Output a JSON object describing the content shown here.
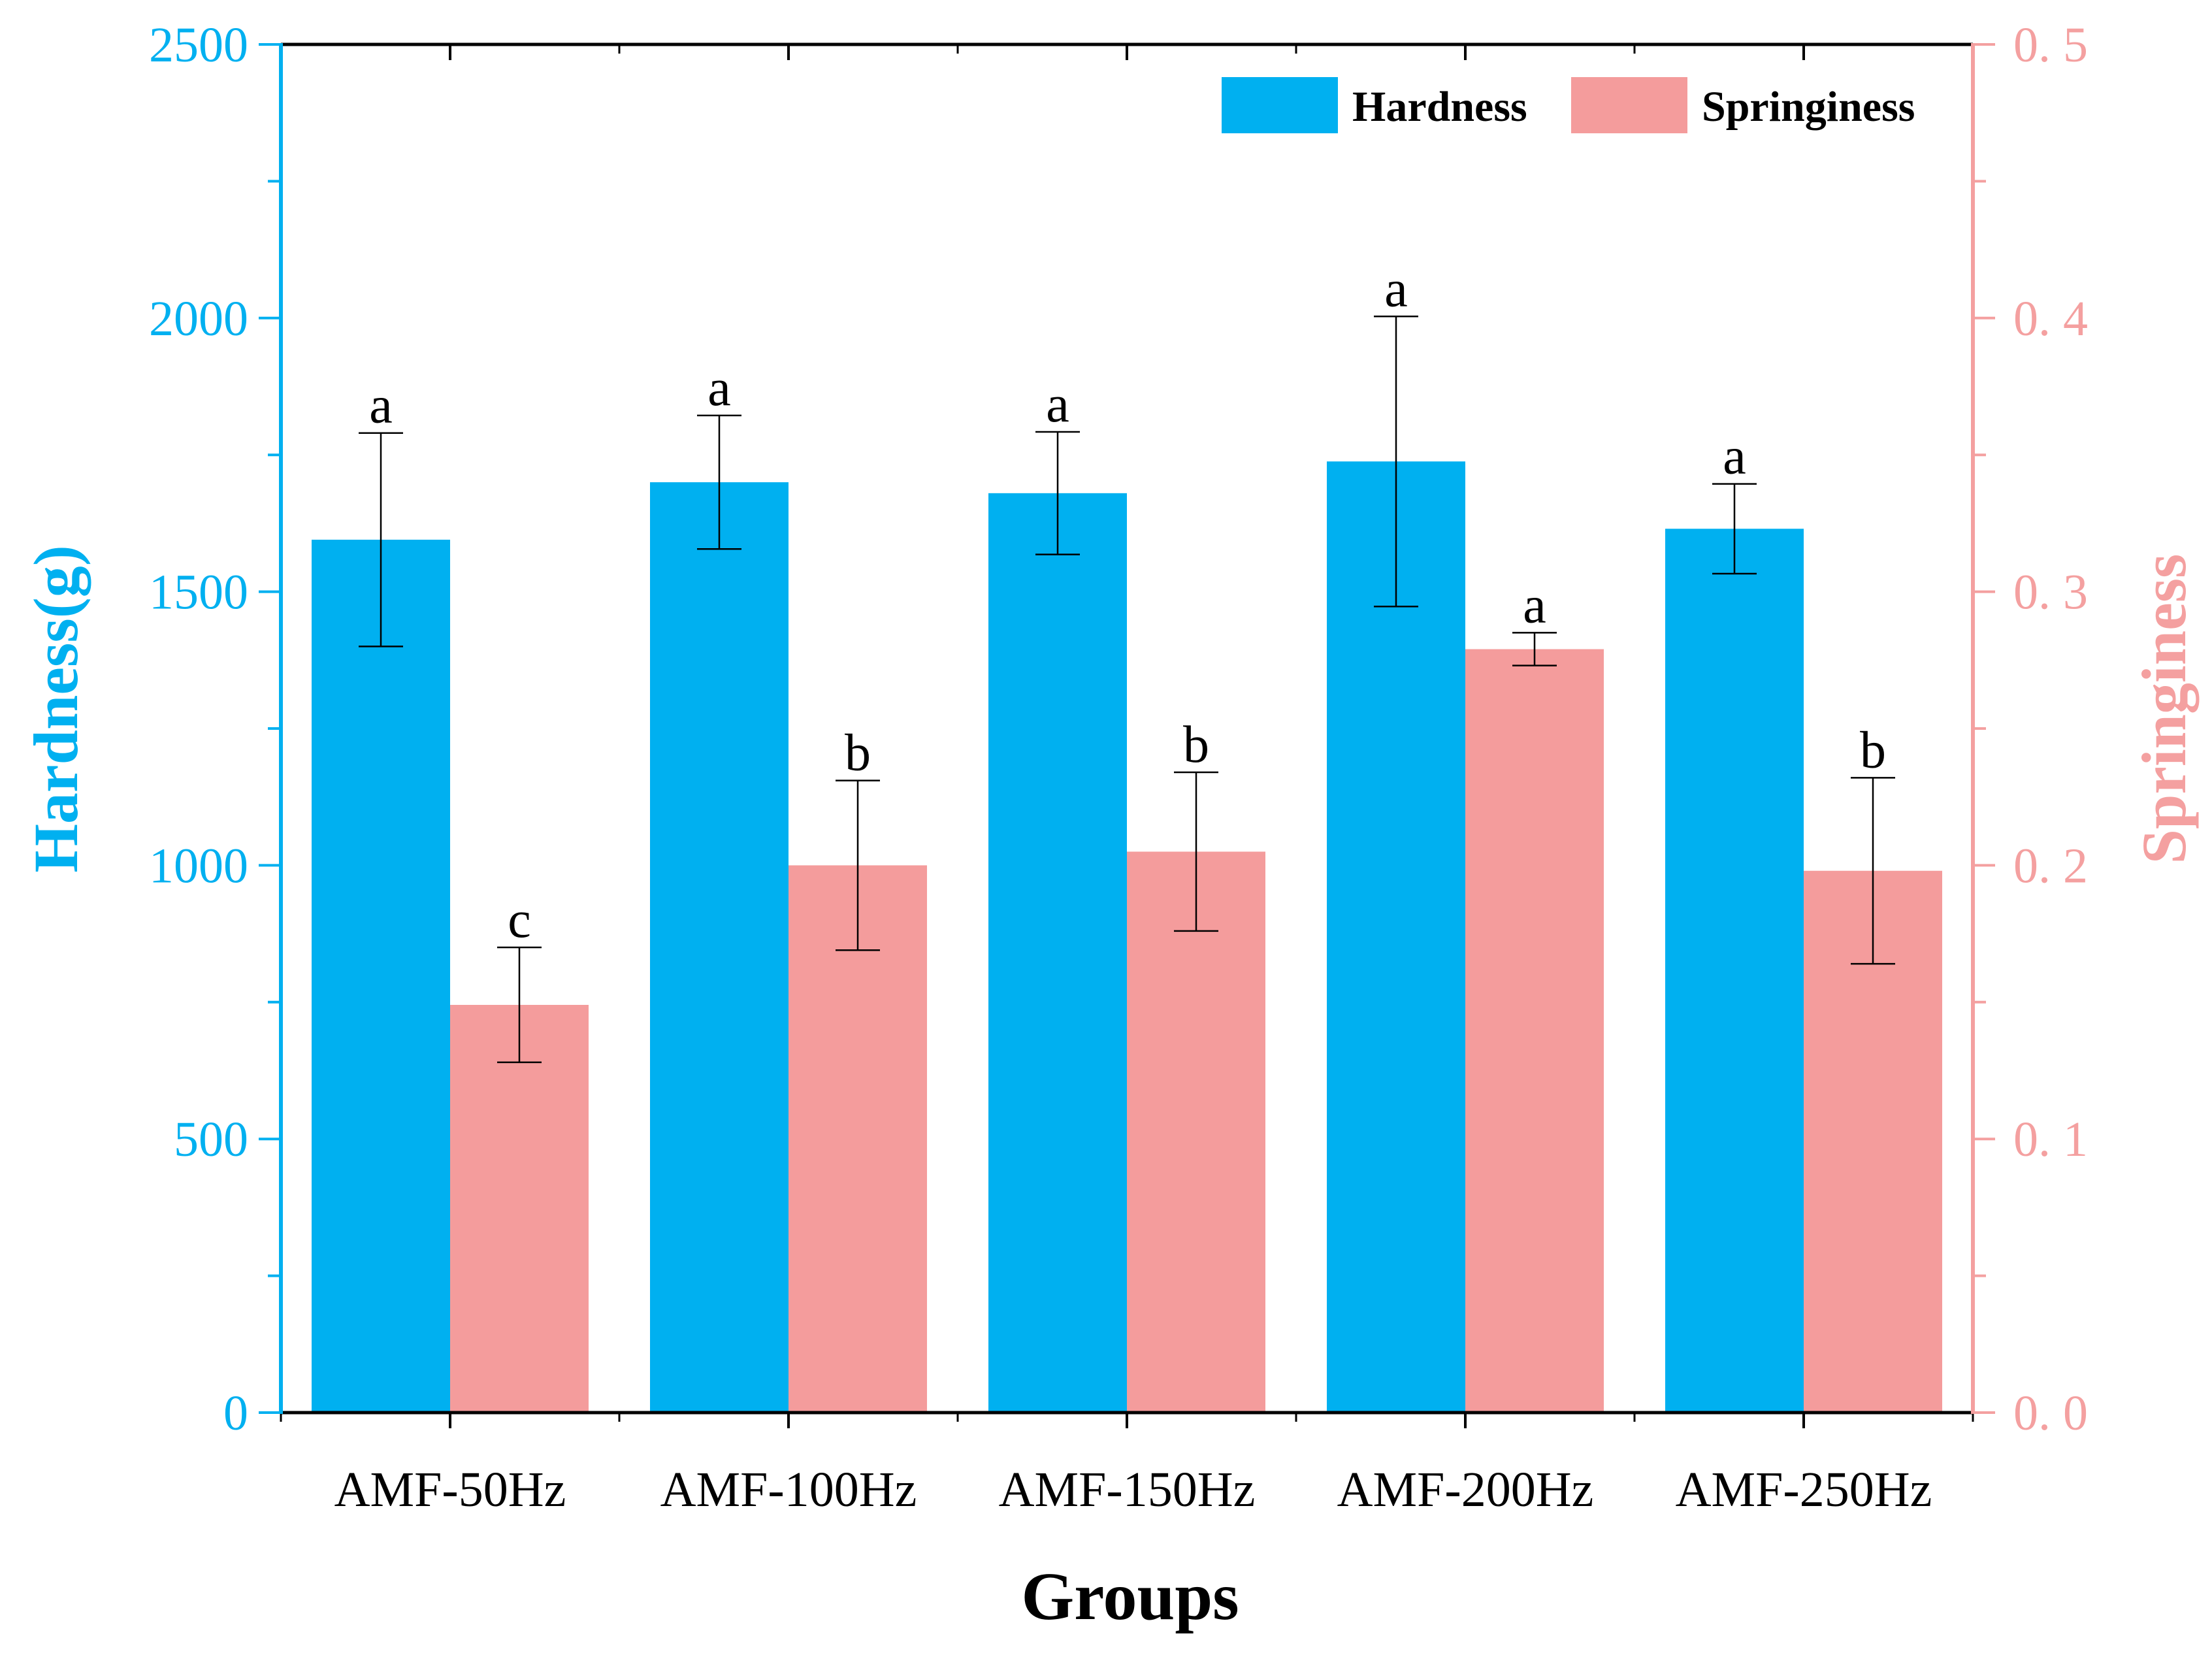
{
  "chart_data": {
    "type": "bar",
    "categories": [
      "AMF-50Hz",
      "AMF-100Hz",
      "AMF-150Hz",
      "AMF-200Hz",
      "AMF-250Hz"
    ],
    "xlabel": "Groups",
    "series": [
      {
        "name": "Hardness",
        "axis": "left",
        "color": "#00b0f0",
        "values": [
          1595,
          1700,
          1680,
          1738,
          1615
        ],
        "error": [
          195,
          122,
          112,
          265,
          82
        ],
        "significance": [
          "a",
          "a",
          "a",
          "a",
          "a"
        ]
      },
      {
        "name": "Springiness",
        "axis": "right",
        "color": "#f49c9c",
        "values": [
          0.149,
          0.2,
          0.205,
          0.279,
          0.198
        ],
        "error": [
          0.021,
          0.031,
          0.029,
          0.006,
          0.034
        ],
        "significance": [
          "c",
          "b",
          "b",
          "a",
          "b"
        ]
      }
    ],
    "y_left": {
      "label": "Hardness(g)",
      "lim": [
        0,
        2500
      ],
      "ticks": [
        "0",
        "500",
        "1000",
        "1500",
        "2000",
        "2500"
      ],
      "color": "#00b0f0"
    },
    "y_right": {
      "label": "Springiness",
      "lim": [
        0,
        0.5
      ],
      "ticks": [
        "0. 0",
        "0. 1",
        "0. 2",
        "0. 3",
        "0. 4",
        "0. 5"
      ],
      "color": "#f4a0a0"
    },
    "legend": "top-right",
    "grid": false
  }
}
